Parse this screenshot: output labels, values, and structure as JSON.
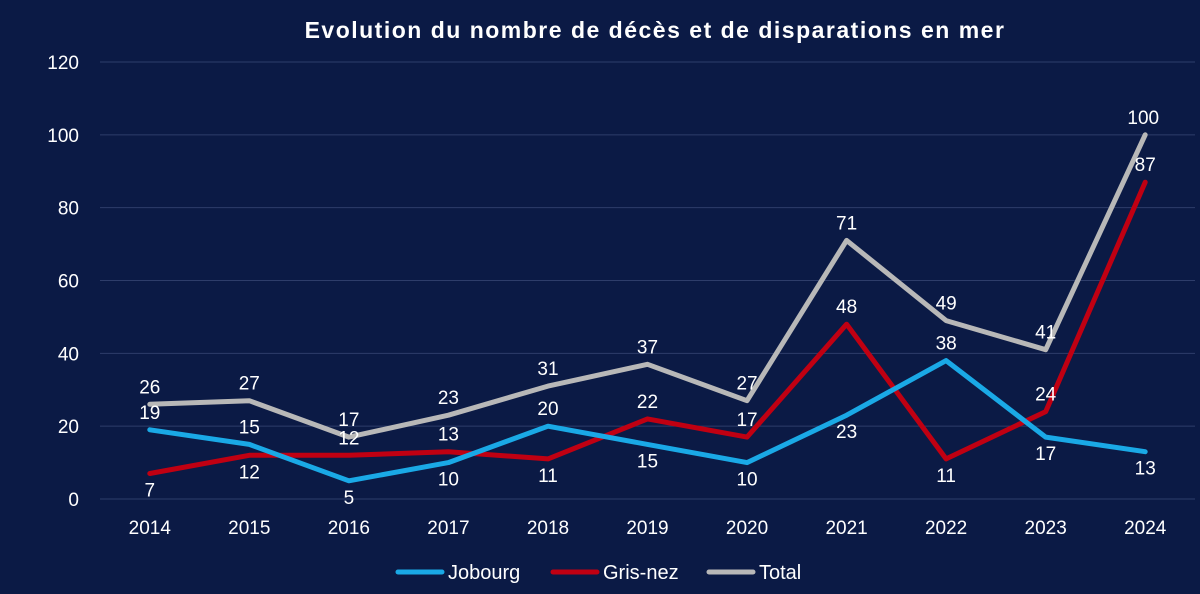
{
  "chart_data": {
    "type": "line",
    "title": "Evolution du nombre de décès et de disparations en mer",
    "xlabel": "",
    "ylabel": "",
    "x": [
      "2014",
      "2015",
      "2016",
      "2017",
      "2018",
      "2019",
      "2020",
      "2021",
      "2022",
      "2023",
      "2024"
    ],
    "ylim": [
      0,
      120
    ],
    "yticks": [
      "0",
      "20",
      "40",
      "60",
      "80",
      "100",
      "120"
    ],
    "grid": true,
    "legend_position": "bottom",
    "series": [
      {
        "name": "Jobourg",
        "color": "#1aa9e6",
        "values": [
          19,
          15,
          5,
          10,
          20,
          15,
          10,
          23,
          38,
          17,
          13
        ]
      },
      {
        "name": "Gris-nez",
        "color": "#c00012",
        "values": [
          7,
          12,
          12,
          13,
          11,
          22,
          17,
          48,
          11,
          24,
          87
        ]
      },
      {
        "name": "Total",
        "color": "#b8b8b8",
        "values": [
          26,
          27,
          17,
          23,
          31,
          37,
          27,
          71,
          49,
          41,
          100
        ]
      }
    ]
  }
}
